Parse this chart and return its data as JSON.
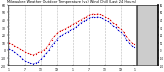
{
  "title": "Milwaukee Weather Outdoor Temperature (vs) Wind Chill (Last 24 Hours)",
  "temp_color": "#dd0000",
  "windchill_color": "#0000cc",
  "bg_color": "#ffffff",
  "grid_color": "#888888",
  "ylim": [
    -20,
    60
  ],
  "ytick_values": [
    60,
    50,
    40,
    30,
    20,
    10,
    0,
    -10,
    -20
  ],
  "num_points": 48,
  "temp_data": [
    10,
    8,
    6,
    4,
    2,
    0,
    -2,
    -4,
    -5,
    -6,
    -5,
    -3,
    -2,
    0,
    3,
    8,
    14,
    18,
    22,
    25,
    26,
    28,
    30,
    32,
    34,
    36,
    38,
    40,
    42,
    44,
    46,
    47,
    48,
    48,
    47,
    46,
    44,
    42,
    40,
    36,
    34,
    30,
    28,
    24,
    18,
    14,
    10,
    8
  ],
  "windchill_data": [
    2,
    0,
    -2,
    -5,
    -8,
    -11,
    -14,
    -16,
    -17,
    -18,
    -17,
    -15,
    -12,
    -8,
    -4,
    0,
    6,
    10,
    14,
    18,
    20,
    22,
    24,
    26,
    28,
    30,
    33,
    36,
    38,
    40,
    42,
    43,
    44,
    44,
    43,
    42,
    40,
    38,
    36,
    32,
    30,
    26,
    24,
    20,
    14,
    10,
    6,
    4
  ],
  "x_tick_positions": [
    0,
    6,
    12,
    18,
    24,
    30,
    36,
    42,
    47
  ],
  "x_tick_labels": [
    "1",
    "7",
    "13",
    "19",
    "1",
    "7",
    "13",
    "19",
    "1"
  ],
  "right_panel_yticks": [
    60,
    50,
    40,
    30,
    20,
    10,
    0,
    -10,
    -20
  ],
  "right_panel_color": "#cccccc"
}
